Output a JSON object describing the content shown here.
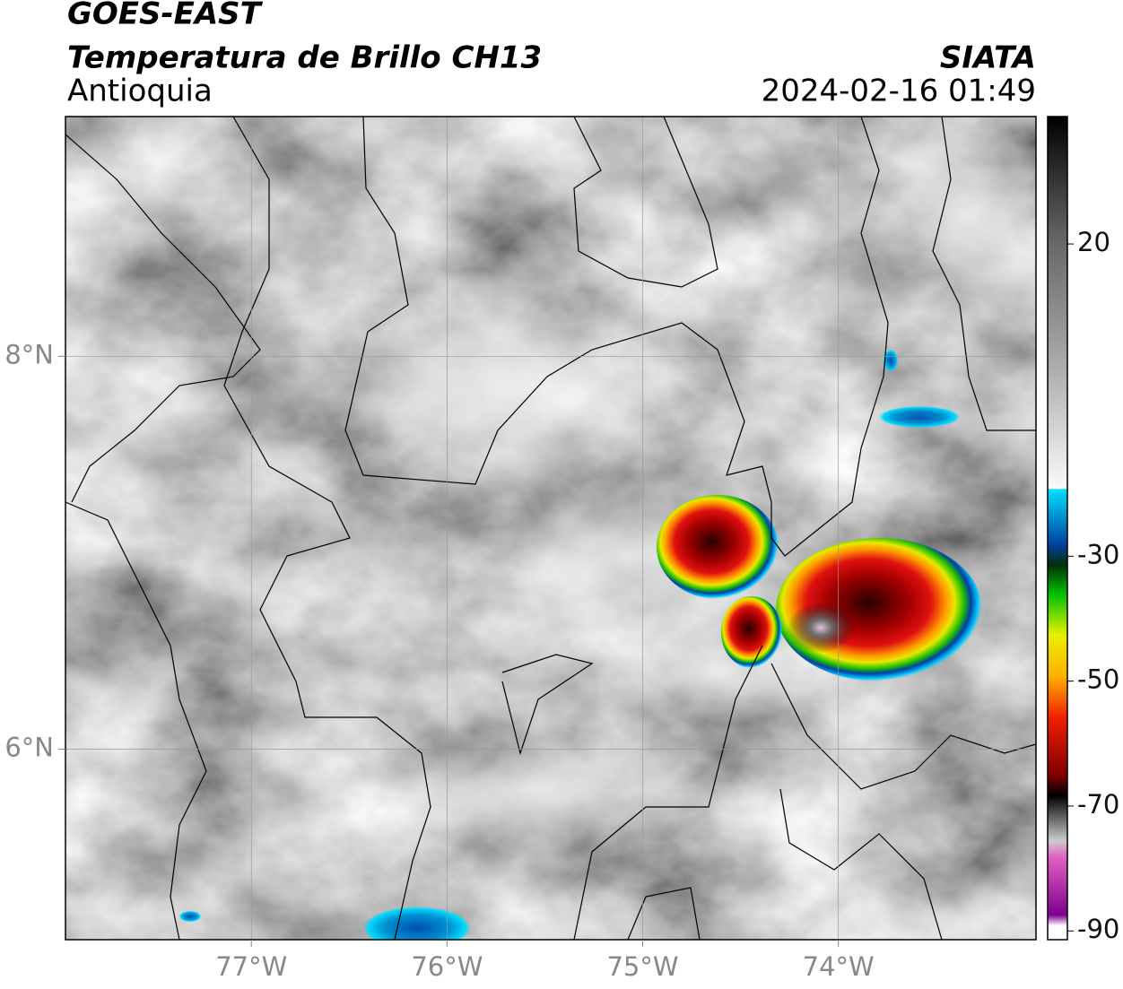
{
  "header": {
    "title": "GOES-EAST",
    "subtitle": "Temperatura de Brillo CH13",
    "region": "Antioquia",
    "source": "SIATA",
    "datetime": "2024-02-16 01:49"
  },
  "map": {
    "lonlim": [
      -77.95,
      -72.99
    ],
    "latlim": [
      5.03,
      9.22
    ],
    "lon_ticks": [
      {
        "value": -77,
        "label": "77°W"
      },
      {
        "value": -76,
        "label": "76°W"
      },
      {
        "value": -75,
        "label": "75°W"
      },
      {
        "value": -74,
        "label": "74°W"
      }
    ],
    "lat_ticks": [
      {
        "value": 8,
        "label": "8°N"
      },
      {
        "value": 6,
        "label": "6°N"
      }
    ]
  },
  "colorbar": {
    "lim": [
      -91.4,
      40.4
    ],
    "ticks": [
      20,
      -30,
      -50,
      -70,
      -90
    ]
  }
}
